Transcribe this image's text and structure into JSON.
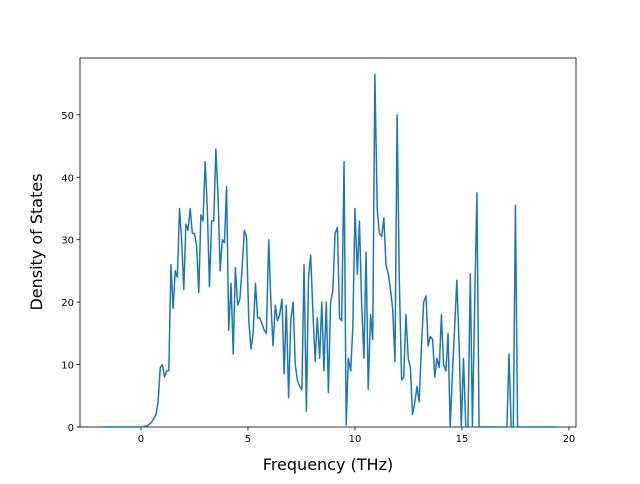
{
  "chart_data": {
    "type": "line",
    "xlabel": "Frequency (THz)",
    "ylabel": "Density of States",
    "xlim": [
      -2.85,
      20.33
    ],
    "ylim": [
      0,
      59.1
    ],
    "xticks": [
      0,
      5,
      10,
      15,
      20
    ],
    "yticks": [
      0,
      10,
      20,
      30,
      40,
      50
    ],
    "grid": false,
    "series": [
      {
        "color": "#1f77b4",
        "x": [
          -1.8,
          0,
          0.3,
          0.5,
          0.7,
          0.8,
          0.9,
          1.0,
          1.1,
          1.2,
          1.3,
          1.4,
          1.5,
          1.6,
          1.7,
          1.8,
          1.9,
          2.0,
          2.1,
          2.2,
          2.3,
          2.4,
          2.5,
          2.6,
          2.7,
          2.8,
          2.9,
          3.0,
          3.1,
          3.2,
          3.3,
          3.4,
          3.5,
          3.6,
          3.7,
          3.8,
          3.9,
          4.0,
          4.1,
          4.21,
          4.31,
          4.41,
          4.52,
          4.62,
          4.72,
          4.83,
          4.93,
          5.04,
          5.14,
          5.24,
          5.35,
          5.45,
          5.55,
          5.66,
          5.76,
          5.86,
          5.97,
          6.07,
          6.17,
          6.28,
          6.38,
          6.48,
          6.59,
          6.69,
          6.79,
          6.9,
          7.0,
          7.11,
          7.21,
          7.31,
          7.42,
          7.52,
          7.62,
          7.73,
          7.83,
          7.93,
          8.04,
          8.14,
          8.24,
          8.35,
          8.45,
          8.55,
          8.66,
          8.76,
          8.86,
          8.97,
          9.07,
          9.18,
          9.28,
          9.38,
          9.49,
          9.59,
          9.69,
          9.8,
          9.9,
          10.0,
          10.11,
          10.21,
          10.31,
          10.42,
          10.52,
          10.62,
          10.73,
          10.83,
          10.93,
          11.04,
          11.14,
          11.25,
          11.35,
          11.45,
          11.56,
          11.66,
          11.76,
          11.87,
          11.97,
          12.07,
          12.18,
          12.28,
          12.38,
          12.49,
          12.59,
          12.69,
          12.8,
          12.9,
          13.0,
          13.11,
          13.21,
          13.32,
          13.42,
          13.52,
          13.63,
          13.73,
          13.83,
          13.94,
          14.04,
          14.14,
          14.25,
          14.35,
          14.45,
          14.56,
          14.66,
          14.76,
          14.87,
          14.97,
          15.07,
          15.18,
          15.28,
          15.39,
          15.49,
          15.59,
          15.7,
          15.8,
          17.0,
          17.1,
          17.2,
          17.3,
          17.4,
          17.5,
          17.6,
          19.4
        ],
        "values": [
          0,
          0,
          0.2,
          0.8,
          2,
          4,
          9.5,
          10,
          8,
          9,
          9,
          26,
          19,
          25,
          24,
          35,
          30,
          22,
          32.5,
          31.5,
          35,
          31,
          31,
          29,
          21.5,
          34,
          33,
          42.5,
          35,
          22.5,
          33,
          33,
          44.5,
          37,
          25,
          30,
          29.5,
          38.5,
          15.5,
          23,
          11.7,
          25.5,
          19.5,
          20.5,
          25,
          31.5,
          30.5,
          17,
          12.5,
          15,
          23,
          17.5,
          17.5,
          16.5,
          15.5,
          15,
          30,
          20,
          13,
          19.5,
          17,
          18,
          20.5,
          8.5,
          19.5,
          4.7,
          17,
          20,
          10,
          7.5,
          6.5,
          6,
          26,
          2.5,
          24,
          27.5,
          18,
          10.5,
          17.5,
          11,
          20,
          9,
          20,
          5.5,
          20,
          22,
          31,
          32,
          17.5,
          17,
          42.5,
          0.3,
          11,
          9,
          16,
          35,
          24.5,
          33,
          20,
          11,
          28,
          6,
          18,
          14,
          56.5,
          35,
          31,
          30.5,
          33.5,
          26,
          24.5,
          22,
          19,
          10.5,
          50,
          24,
          7.5,
          8,
          18,
          11,
          9.5,
          2,
          4,
          6.5,
          4,
          13,
          20,
          21,
          13,
          14.5,
          14,
          8,
          11,
          9.5,
          18,
          10,
          9,
          15,
          0,
          9,
          16,
          23.5,
          13,
          0,
          11,
          0,
          0,
          24.5,
          0,
          19,
          37.5,
          0,
          0,
          0,
          11.7,
          0,
          0,
          35.5,
          0,
          0
        ]
      }
    ]
  }
}
